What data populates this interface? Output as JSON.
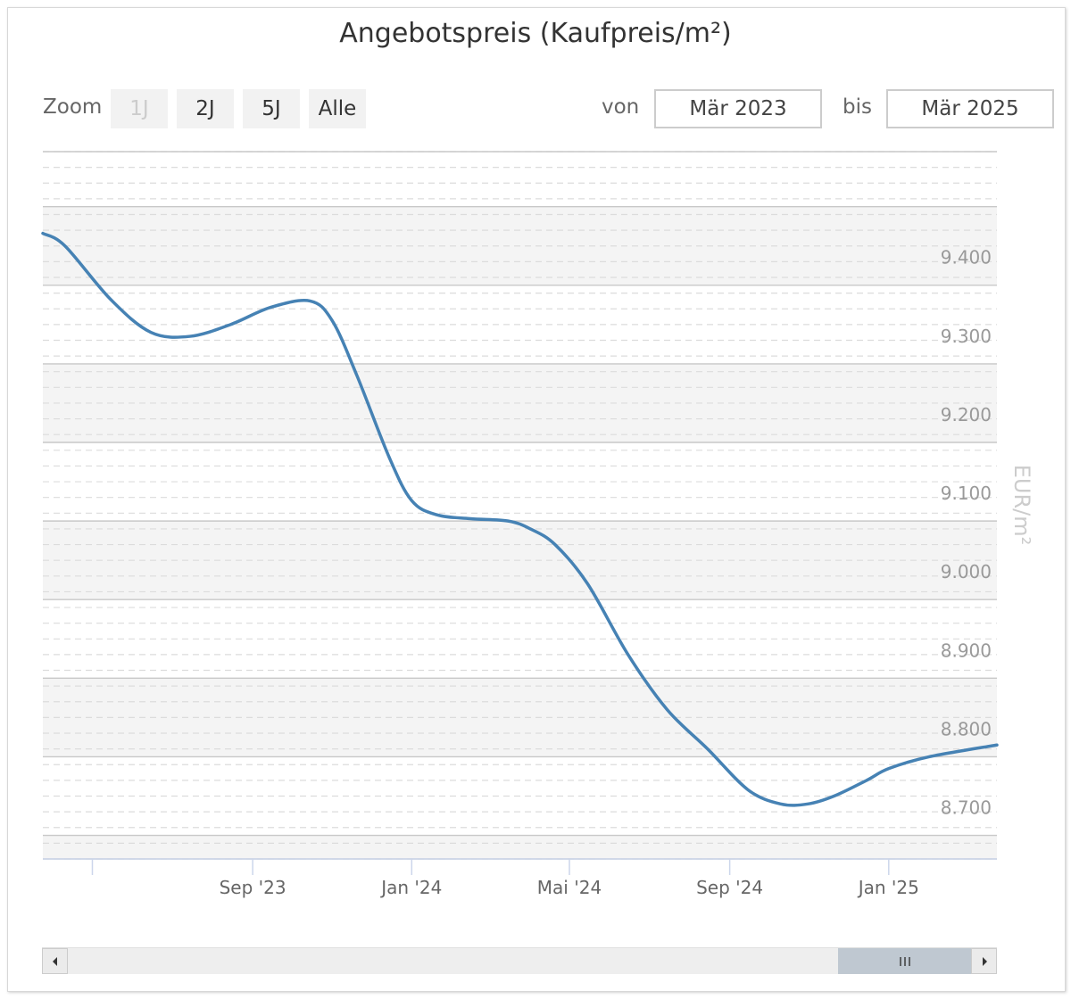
{
  "chart_data": {
    "type": "line",
    "title": "Angebotspreis (Kaufpreis/m²)",
    "ylabel": "EUR/m²",
    "xlabel": "",
    "ylim": [
      8620,
      9520
    ],
    "y_ticks": [
      8700,
      8800,
      8900,
      9000,
      9100,
      9200,
      9300,
      9400
    ],
    "y_tick_labels": [
      "8.700",
      "8.800",
      "8.900",
      "9.000",
      "9.100",
      "9.200",
      "9.300",
      "9.400"
    ],
    "x_range": [
      "2023-03-24",
      "2025-03-25"
    ],
    "x_ticks": [
      {
        "date": "2023-05-01",
        "label": ""
      },
      {
        "date": "2023-09-01",
        "label": "Sep '23"
      },
      {
        "date": "2024-01-01",
        "label": "Jan '24"
      },
      {
        "date": "2024-05-01",
        "label": "Mai '24"
      },
      {
        "date": "2024-09-01",
        "label": "Sep '24"
      },
      {
        "date": "2025-01-01",
        "label": "Jan '25"
      }
    ],
    "grid": true,
    "series": [
      {
        "color": "#4682b4",
        "x": [
          "2023-03-24",
          "2023-04-10",
          "2023-05-15",
          "2023-06-15",
          "2023-07-15",
          "2023-08-15",
          "2023-09-15",
          "2023-10-15",
          "2023-11-01",
          "2023-11-20",
          "2023-12-15",
          "2024-01-01",
          "2024-01-20",
          "2024-02-15",
          "2024-03-15",
          "2024-04-01",
          "2024-04-20",
          "2024-05-15",
          "2024-06-15",
          "2024-07-15",
          "2024-08-15",
          "2024-09-15",
          "2024-10-10",
          "2024-10-31",
          "2024-11-20",
          "2024-12-15",
          "2025-01-01",
          "2025-02-01",
          "2025-03-25"
        ],
        "y": [
          9416,
          9400,
          9332,
          9290,
          9285,
          9300,
          9322,
          9330,
          9305,
          9235,
          9130,
          9076,
          9058,
          9053,
          9050,
          9040,
          9020,
          8970,
          8880,
          8810,
          8760,
          8708,
          8690,
          8690,
          8700,
          8720,
          8735,
          8750,
          8765
        ]
      }
    ]
  },
  "zoom": {
    "label": "Zoom",
    "buttons": [
      {
        "label": "1J",
        "disabled": true
      },
      {
        "label": "2J",
        "disabled": false
      },
      {
        "label": "5J",
        "disabled": false
      },
      {
        "label": "Alle",
        "disabled": false
      }
    ]
  },
  "range": {
    "from_label": "von",
    "from_value": "Mär 2023",
    "to_label": "bis",
    "to_value": "Mär 2025"
  },
  "navigator": {
    "thumb_start": 0.865,
    "thumb_end": 1.0
  },
  "colors": {
    "line": "#4682b4",
    "band": "#f4f4f4",
    "grid": "#c8c8c8",
    "minor_grid": "#dcdcdc",
    "axis": "#ccd6eb"
  }
}
